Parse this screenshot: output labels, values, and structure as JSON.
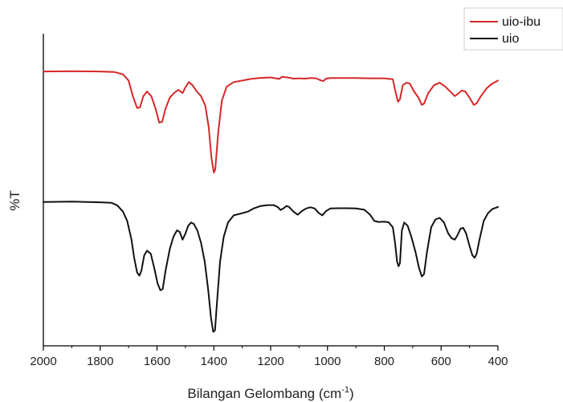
{
  "chart_data": {
    "type": "line",
    "xlabel_main": "Bilangan Gelombang (cm",
    "xlabel_sup": "-1",
    "xlabel_end": ")",
    "ylabel": "%T",
    "xlim": [
      2000,
      400
    ],
    "x_ticks": [
      2000,
      1800,
      1600,
      1400,
      1200,
      1000,
      800,
      600,
      400
    ],
    "x_tick_labels": [
      "2000",
      "1800",
      "1600",
      "1400",
      "1200",
      "1000",
      "800",
      "600",
      "400"
    ],
    "y_ticks_shown": false,
    "legend": {
      "position": "top-right"
    },
    "series": [
      {
        "name": "uio-ibu",
        "color": "#d62728",
        "points": [
          [
            2000,
            0.879
          ],
          [
            1900,
            0.88
          ],
          [
            1800,
            0.879
          ],
          [
            1750,
            0.877
          ],
          [
            1720,
            0.87
          ],
          [
            1700,
            0.85
          ],
          [
            1685,
            0.8
          ],
          [
            1670,
            0.762
          ],
          [
            1660,
            0.764
          ],
          [
            1648,
            0.8
          ],
          [
            1635,
            0.815
          ],
          [
            1620,
            0.8
          ],
          [
            1605,
            0.76
          ],
          [
            1592,
            0.715
          ],
          [
            1582,
            0.718
          ],
          [
            1570,
            0.76
          ],
          [
            1555,
            0.795
          ],
          [
            1540,
            0.81
          ],
          [
            1525,
            0.82
          ],
          [
            1510,
            0.81
          ],
          [
            1500,
            0.828
          ],
          [
            1488,
            0.845
          ],
          [
            1475,
            0.835
          ],
          [
            1460,
            0.815
          ],
          [
            1445,
            0.8
          ],
          [
            1430,
            0.77
          ],
          [
            1418,
            0.7
          ],
          [
            1408,
            0.6
          ],
          [
            1400,
            0.555
          ],
          [
            1395,
            0.565
          ],
          [
            1385,
            0.68
          ],
          [
            1372,
            0.785
          ],
          [
            1355,
            0.83
          ],
          [
            1330,
            0.845
          ],
          [
            1300,
            0.85
          ],
          [
            1270,
            0.855
          ],
          [
            1240,
            0.858
          ],
          [
            1200,
            0.86
          ],
          [
            1170,
            0.855
          ],
          [
            1160,
            0.862
          ],
          [
            1140,
            0.86
          ],
          [
            1120,
            0.856
          ],
          [
            1100,
            0.857
          ],
          [
            1080,
            0.856
          ],
          [
            1060,
            0.858
          ],
          [
            1040,
            0.857
          ],
          [
            1025,
            0.851
          ],
          [
            1015,
            0.848
          ],
          [
            1005,
            0.856
          ],
          [
            990,
            0.858
          ],
          [
            950,
            0.858
          ],
          [
            900,
            0.858
          ],
          [
            850,
            0.857
          ],
          [
            800,
            0.857
          ],
          [
            770,
            0.854
          ],
          [
            762,
            0.82
          ],
          [
            752,
            0.782
          ],
          [
            745,
            0.79
          ],
          [
            735,
            0.835
          ],
          [
            722,
            0.843
          ],
          [
            710,
            0.84
          ],
          [
            695,
            0.815
          ],
          [
            680,
            0.795
          ],
          [
            668,
            0.772
          ],
          [
            660,
            0.776
          ],
          [
            645,
            0.81
          ],
          [
            625,
            0.835
          ],
          [
            605,
            0.843
          ],
          [
            585,
            0.83
          ],
          [
            565,
            0.812
          ],
          [
            552,
            0.8
          ],
          [
            540,
            0.808
          ],
          [
            528,
            0.818
          ],
          [
            515,
            0.815
          ],
          [
            500,
            0.795
          ],
          [
            485,
            0.772
          ],
          [
            475,
            0.777
          ],
          [
            460,
            0.8
          ],
          [
            440,
            0.825
          ],
          [
            420,
            0.84
          ],
          [
            400,
            0.85
          ]
        ]
      },
      {
        "name": "uio",
        "color": "#111111",
        "points": [
          [
            2000,
            0.461
          ],
          [
            1900,
            0.462
          ],
          [
            1800,
            0.46
          ],
          [
            1760,
            0.458
          ],
          [
            1740,
            0.45
          ],
          [
            1720,
            0.43
          ],
          [
            1705,
            0.4
          ],
          [
            1690,
            0.34
          ],
          [
            1680,
            0.28
          ],
          [
            1670,
            0.235
          ],
          [
            1662,
            0.225
          ],
          [
            1655,
            0.24
          ],
          [
            1645,
            0.29
          ],
          [
            1635,
            0.305
          ],
          [
            1622,
            0.295
          ],
          [
            1610,
            0.25
          ],
          [
            1598,
            0.2
          ],
          [
            1588,
            0.178
          ],
          [
            1580,
            0.182
          ],
          [
            1570,
            0.24
          ],
          [
            1555,
            0.31
          ],
          [
            1542,
            0.35
          ],
          [
            1530,
            0.37
          ],
          [
            1520,
            0.365
          ],
          [
            1510,
            0.34
          ],
          [
            1500,
            0.36
          ],
          [
            1490,
            0.385
          ],
          [
            1480,
            0.395
          ],
          [
            1470,
            0.39
          ],
          [
            1458,
            0.37
          ],
          [
            1445,
            0.33
          ],
          [
            1432,
            0.27
          ],
          [
            1420,
            0.18
          ],
          [
            1410,
            0.09
          ],
          [
            1402,
            0.045
          ],
          [
            1396,
            0.05
          ],
          [
            1388,
            0.15
          ],
          [
            1378,
            0.27
          ],
          [
            1365,
            0.35
          ],
          [
            1350,
            0.395
          ],
          [
            1330,
            0.418
          ],
          [
            1300,
            0.425
          ],
          [
            1280,
            0.43
          ],
          [
            1260,
            0.44
          ],
          [
            1235,
            0.448
          ],
          [
            1210,
            0.451
          ],
          [
            1190,
            0.451
          ],
          [
            1175,
            0.445
          ],
          [
            1165,
            0.435
          ],
          [
            1155,
            0.44
          ],
          [
            1145,
            0.448
          ],
          [
            1135,
            0.445
          ],
          [
            1120,
            0.43
          ],
          [
            1105,
            0.42
          ],
          [
            1090,
            0.432
          ],
          [
            1075,
            0.44
          ],
          [
            1060,
            0.444
          ],
          [
            1045,
            0.44
          ],
          [
            1030,
            0.425
          ],
          [
            1018,
            0.418
          ],
          [
            1005,
            0.432
          ],
          [
            990,
            0.44
          ],
          [
            960,
            0.441
          ],
          [
            930,
            0.441
          ],
          [
            900,
            0.44
          ],
          [
            870,
            0.436
          ],
          [
            850,
            0.42
          ],
          [
            835,
            0.4
          ],
          [
            820,
            0.397
          ],
          [
            800,
            0.398
          ],
          [
            785,
            0.396
          ],
          [
            770,
            0.38
          ],
          [
            762,
            0.33
          ],
          [
            755,
            0.27
          ],
          [
            750,
            0.255
          ],
          [
            745,
            0.265
          ],
          [
            738,
            0.37
          ],
          [
            730,
            0.395
          ],
          [
            718,
            0.385
          ],
          [
            705,
            0.35
          ],
          [
            690,
            0.3
          ],
          [
            678,
            0.25
          ],
          [
            668,
            0.222
          ],
          [
            660,
            0.23
          ],
          [
            650,
            0.3
          ],
          [
            635,
            0.38
          ],
          [
            620,
            0.405
          ],
          [
            605,
            0.41
          ],
          [
            590,
            0.395
          ],
          [
            575,
            0.36
          ],
          [
            563,
            0.345
          ],
          [
            552,
            0.34
          ],
          [
            542,
            0.355
          ],
          [
            532,
            0.375
          ],
          [
            522,
            0.378
          ],
          [
            512,
            0.36
          ],
          [
            500,
            0.32
          ],
          [
            490,
            0.29
          ],
          [
            482,
            0.282
          ],
          [
            475,
            0.295
          ],
          [
            465,
            0.34
          ],
          [
            450,
            0.4
          ],
          [
            435,
            0.425
          ],
          [
            420,
            0.438
          ],
          [
            400,
            0.445
          ]
        ]
      }
    ]
  }
}
